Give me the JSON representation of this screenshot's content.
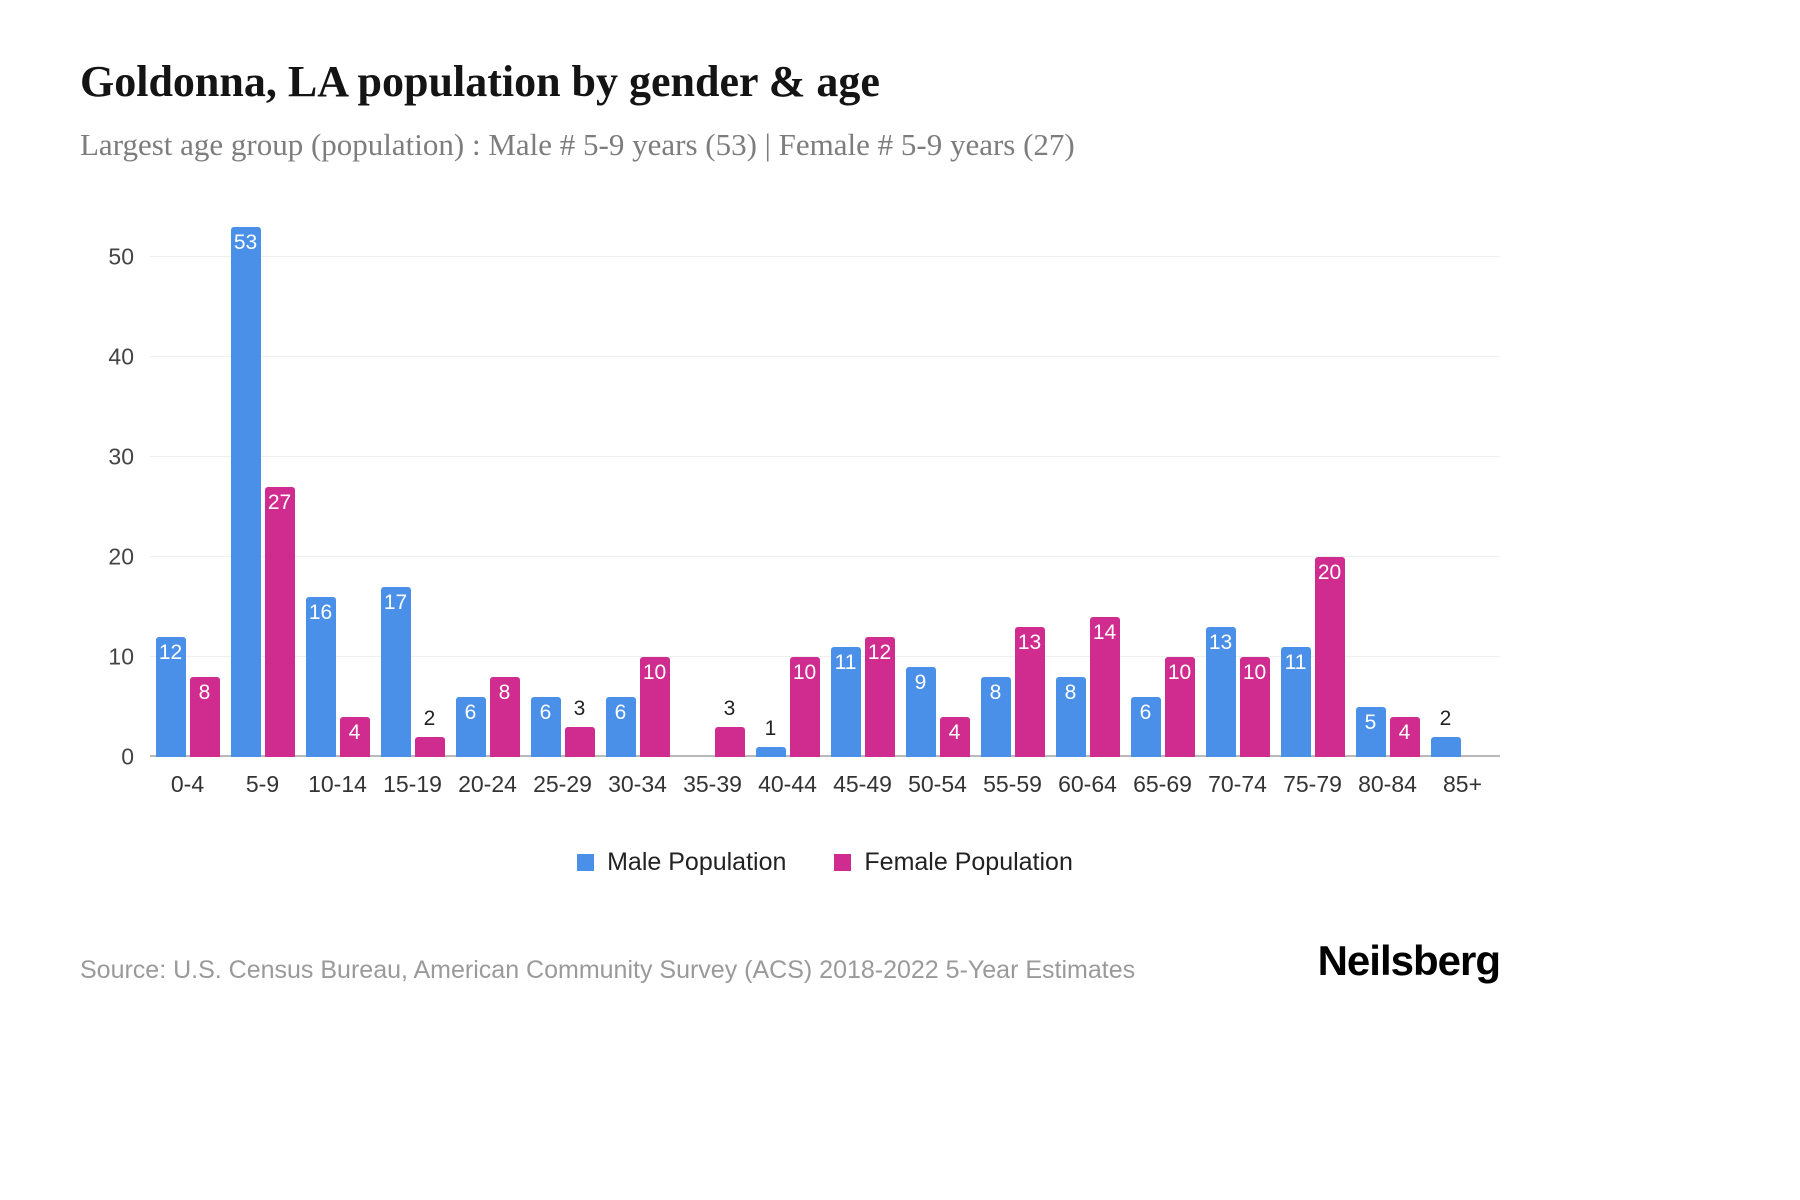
{
  "title": "Goldonna, LA population by gender & age",
  "subtitle": "Largest age group (population) : Male # 5-9 years (53) | Female # 5-9 years (27)",
  "source": "Source: U.S. Census Bureau, American Community Survey (ACS) 2018-2022 5-Year Estimates",
  "logo": "Neilsberg",
  "colors": {
    "male": "#4a90e8",
    "female": "#d02b8e"
  },
  "chart_data": {
    "type": "bar",
    "title": "Goldonna, LA population by gender & age",
    "categories": [
      "0-4",
      "5-9",
      "10-14",
      "15-19",
      "20-24",
      "25-29",
      "30-34",
      "35-39",
      "40-44",
      "45-49",
      "50-54",
      "55-59",
      "60-64",
      "65-69",
      "70-74",
      "75-79",
      "80-84",
      "85+"
    ],
    "series": [
      {
        "name": "Male Population",
        "color": "#4a90e8",
        "values": [
          12,
          53,
          16,
          17,
          6,
          6,
          6,
          0,
          1,
          11,
          9,
          8,
          8,
          6,
          13,
          11,
          5,
          2
        ]
      },
      {
        "name": "Female Population",
        "color": "#d02b8e",
        "values": [
          8,
          27,
          4,
          2,
          8,
          3,
          10,
          3,
          10,
          12,
          4,
          13,
          14,
          10,
          10,
          20,
          4,
          0
        ]
      }
    ],
    "xlabel": "",
    "ylabel": "",
    "yticks": [
      0,
      10,
      20,
      30,
      40,
      50
    ],
    "ylim": [
      0,
      53
    ],
    "grid": true,
    "legend_position": "bottom",
    "value_labels": "inside if value >= 4, above bar if 1-3, hidden if 0"
  }
}
